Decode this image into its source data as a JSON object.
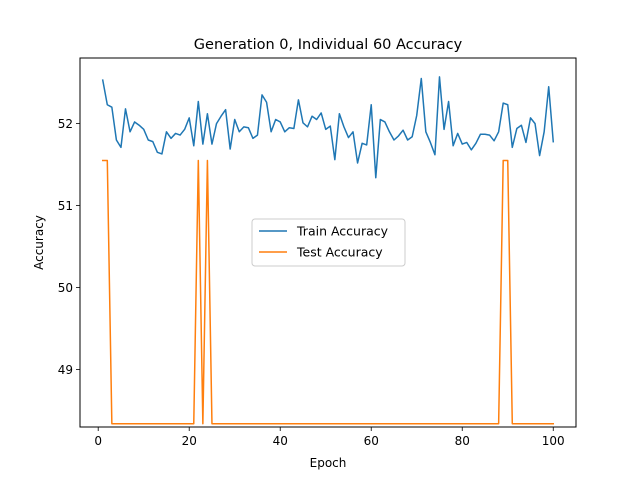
{
  "chart_data": {
    "type": "line",
    "title": "Generation 0, Individual 60 Accuracy",
    "xlabel": "Epoch",
    "ylabel": "Accuracy",
    "xlim": [
      -4,
      105
    ],
    "ylim": [
      48.3,
      52.8
    ],
    "xticks": [
      0,
      20,
      40,
      60,
      80,
      100
    ],
    "yticks": [
      49,
      50,
      51,
      52
    ],
    "grid": false,
    "legend_position": "center",
    "series": [
      {
        "name": "Train Accuracy",
        "color": "#1f77b4",
        "x": [
          1,
          2,
          3,
          4,
          5,
          6,
          7,
          8,
          9,
          10,
          11,
          12,
          13,
          14,
          15,
          16,
          17,
          18,
          19,
          20,
          21,
          22,
          23,
          24,
          25,
          26,
          27,
          28,
          29,
          30,
          31,
          32,
          33,
          34,
          35,
          36,
          37,
          38,
          39,
          40,
          41,
          42,
          43,
          44,
          45,
          46,
          47,
          48,
          49,
          50,
          51,
          52,
          53,
          54,
          55,
          56,
          57,
          58,
          59,
          60,
          61,
          62,
          63,
          64,
          65,
          66,
          67,
          68,
          69,
          70,
          71,
          72,
          73,
          74,
          75,
          76,
          77,
          78,
          79,
          80,
          81,
          82,
          83,
          84,
          85,
          86,
          87,
          88,
          89,
          90,
          91,
          92,
          93,
          94,
          95,
          96,
          97,
          98,
          99,
          100
        ],
        "values": [
          52.53,
          52.23,
          52.2,
          51.8,
          51.71,
          52.18,
          51.9,
          52.02,
          51.98,
          51.93,
          51.8,
          51.78,
          51.65,
          51.63,
          51.9,
          51.82,
          51.88,
          51.86,
          51.93,
          52.07,
          51.73,
          52.27,
          51.75,
          52.12,
          51.75,
          52.0,
          52.09,
          52.17,
          51.69,
          52.05,
          51.9,
          51.96,
          51.95,
          51.82,
          51.86,
          52.35,
          52.26,
          51.9,
          52.05,
          52.02,
          51.9,
          51.95,
          51.94,
          52.29,
          52.01,
          51.96,
          52.09,
          52.05,
          52.13,
          51.93,
          51.97,
          51.56,
          52.12,
          51.96,
          51.83,
          51.9,
          51.52,
          51.76,
          51.74,
          52.23,
          51.34,
          52.05,
          52.02,
          51.9,
          51.8,
          51.85,
          51.92,
          51.8,
          51.84,
          52.1,
          52.55,
          51.9,
          51.77,
          51.62,
          52.57,
          51.93,
          52.27,
          51.73,
          51.88,
          51.75,
          51.77,
          51.68,
          51.76,
          51.87,
          51.87,
          51.86,
          51.79,
          51.9,
          52.25,
          52.23,
          51.71,
          51.94,
          51.98,
          51.77,
          52.07,
          52.0,
          51.61,
          51.9,
          52.45,
          51.78
        ]
      },
      {
        "name": "Test Accuracy",
        "color": "#ff7f0e",
        "x": [
          1,
          2,
          3,
          4,
          5,
          6,
          7,
          8,
          9,
          10,
          11,
          12,
          13,
          14,
          15,
          16,
          17,
          18,
          19,
          20,
          21,
          22,
          23,
          24,
          25,
          26,
          27,
          28,
          29,
          30,
          31,
          32,
          33,
          34,
          35,
          36,
          37,
          38,
          39,
          40,
          41,
          42,
          43,
          44,
          45,
          46,
          47,
          48,
          49,
          50,
          51,
          52,
          53,
          54,
          55,
          56,
          57,
          58,
          59,
          60,
          61,
          62,
          63,
          64,
          65,
          66,
          67,
          68,
          69,
          70,
          71,
          72,
          73,
          74,
          75,
          76,
          77,
          78,
          79,
          80,
          81,
          82,
          83,
          84,
          85,
          86,
          87,
          88,
          89,
          90,
          91,
          92,
          93,
          94,
          95,
          96,
          97,
          98,
          99,
          100
        ],
        "values": [
          51.55,
          51.55,
          48.34,
          48.34,
          48.34,
          48.34,
          48.34,
          48.34,
          48.34,
          48.34,
          48.34,
          48.34,
          48.34,
          48.34,
          48.34,
          48.34,
          48.34,
          48.34,
          48.34,
          48.34,
          48.34,
          51.55,
          48.34,
          51.55,
          48.34,
          48.34,
          48.34,
          48.34,
          48.34,
          48.34,
          48.34,
          48.34,
          48.34,
          48.34,
          48.34,
          48.34,
          48.34,
          48.34,
          48.34,
          48.34,
          48.34,
          48.34,
          48.34,
          48.34,
          48.34,
          48.34,
          48.34,
          48.34,
          48.34,
          48.34,
          48.34,
          48.34,
          48.34,
          48.34,
          48.34,
          48.34,
          48.34,
          48.34,
          48.34,
          48.34,
          48.34,
          48.34,
          48.34,
          48.34,
          48.34,
          48.34,
          48.34,
          48.34,
          48.34,
          48.34,
          48.34,
          48.34,
          48.34,
          48.34,
          48.34,
          48.34,
          48.34,
          48.34,
          48.34,
          48.34,
          48.34,
          48.34,
          48.34,
          48.34,
          48.34,
          48.34,
          48.34,
          48.34,
          51.55,
          51.55,
          48.34,
          48.34,
          48.34,
          48.34,
          48.34,
          48.34,
          48.34,
          48.34,
          48.34,
          48.34
        ]
      }
    ]
  }
}
